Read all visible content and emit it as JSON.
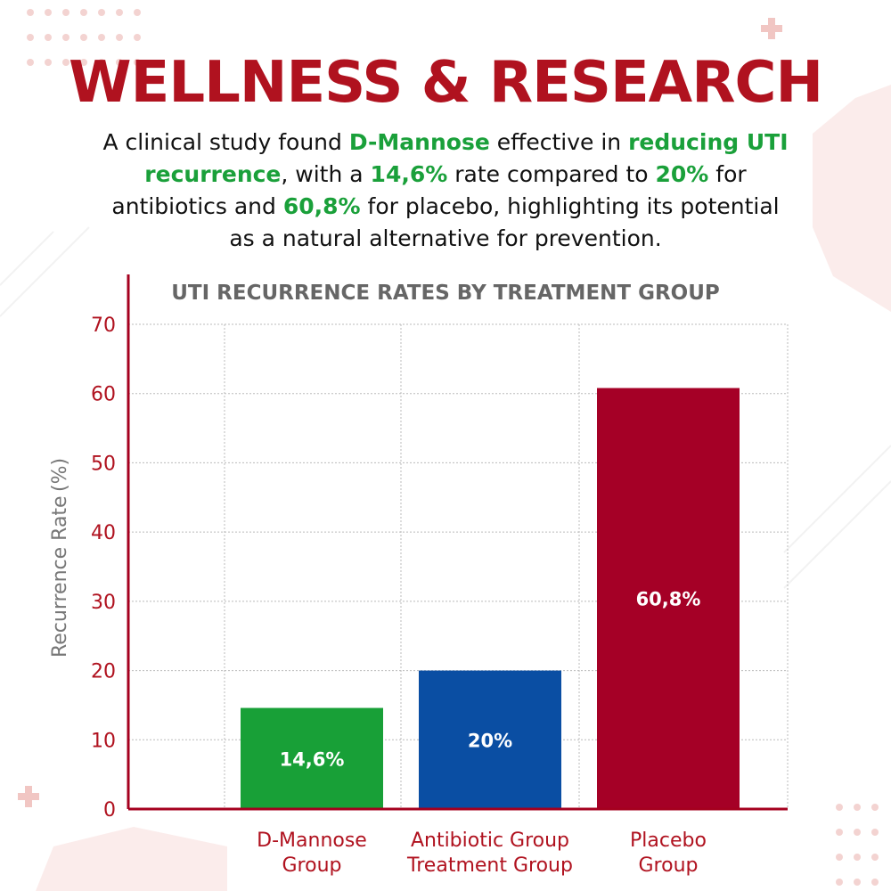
{
  "header": {
    "title": "WELLNESS & RESEARCH",
    "intro": [
      {
        "text": "A clinical study found ",
        "hl": false
      },
      {
        "text": "D-Mannose",
        "hl": true
      },
      {
        "text": " effective in ",
        "hl": false
      },
      {
        "text": "reducing UTI recurrence",
        "hl": true
      },
      {
        "text": ", with a ",
        "hl": false
      },
      {
        "text": "14,6%",
        "hl": true
      },
      {
        "text": " rate compared to ",
        "hl": false
      },
      {
        "text": "20%",
        "hl": true
      },
      {
        "text": " for antibiotics and ",
        "hl": false
      },
      {
        "text": "60,8%",
        "hl": true
      },
      {
        "text": " for placebo, highlighting its potential as a natural alternative for prevention.",
        "hl": false
      }
    ]
  },
  "chart_data": {
    "type": "bar",
    "title": "UTI RECURRENCE RATES BY TREATMENT GROUP",
    "ylabel": "Recurrence Rate (%)",
    "xlabel": "",
    "ylim": [
      0,
      70
    ],
    "yticks": [
      0,
      10,
      20,
      30,
      40,
      50,
      60,
      70
    ],
    "grid": true,
    "categories": [
      [
        "D-Mannose",
        "Group"
      ],
      [
        "Antibiotic Group",
        "Treatment Group"
      ],
      [
        "Placebo",
        "Group"
      ]
    ],
    "values": [
      14.6,
      20,
      60.8
    ],
    "data_labels": [
      "14,6%",
      "20%",
      "60,8%"
    ],
    "colors": [
      "#18a037",
      "#0a4ea3",
      "#a50026"
    ],
    "axis_color": "#a5001f",
    "tick_label_color": "#b0121f",
    "category_label_color": "#b0121f",
    "title_color": "#666666"
  }
}
